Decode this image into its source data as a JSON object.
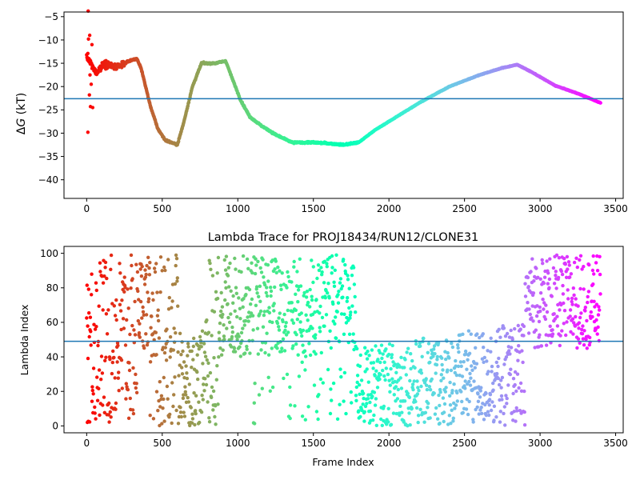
{
  "chart_data": [
    {
      "type": "scatter",
      "title": "",
      "xlabel": "",
      "ylabel": "ΔG (kT)",
      "ylabel_parts": {
        "delta": "Δ",
        "symbol": "G",
        "unit": " (kT)"
      },
      "xlim": [
        -150,
        3550
      ],
      "ylim": [
        -44,
        -4
      ],
      "xticks": [
        0,
        500,
        1000,
        1500,
        2000,
        2500,
        3000,
        3500
      ],
      "yticks": [
        -40,
        -35,
        -30,
        -25,
        -20,
        -15,
        -10,
        -5
      ],
      "tick_labels_x": [
        "0",
        "500",
        "1000",
        "1500",
        "2000",
        "2500",
        "3000",
        "3500"
      ],
      "tick_labels_y": [
        "−40",
        "−35",
        "−30",
        "−25",
        "−20",
        "−15",
        "−10",
        "−5"
      ],
      "hline": -22.6,
      "hline_color": "#1f77b4",
      "colormap": "rainbow (red → purple with increasing frame index)",
      "n_frames": 3400,
      "x_max": 3400,
      "trace_knots": [
        [
          0,
          -13.5
        ],
        [
          60,
          -17
        ],
        [
          120,
          -15
        ],
        [
          200,
          -16
        ],
        [
          280,
          -14.5
        ],
        [
          330,
          -14
        ],
        [
          360,
          -16
        ],
        [
          420,
          -24
        ],
        [
          470,
          -29
        ],
        [
          520,
          -31.5
        ],
        [
          600,
          -32.5
        ],
        [
          640,
          -28
        ],
        [
          700,
          -20
        ],
        [
          760,
          -15
        ],
        [
          850,
          -15
        ],
        [
          920,
          -14.5
        ],
        [
          960,
          -18
        ],
        [
          1020,
          -23
        ],
        [
          1080,
          -26.5
        ],
        [
          1160,
          -28.5
        ],
        [
          1260,
          -30.5
        ],
        [
          1360,
          -32
        ],
        [
          1500,
          -32
        ],
        [
          1600,
          -32.2
        ],
        [
          1700,
          -32.5
        ],
        [
          1800,
          -32
        ],
        [
          1900,
          -29.5
        ],
        [
          2000,
          -27.5
        ],
        [
          2200,
          -23.5
        ],
        [
          2400,
          -20
        ],
        [
          2600,
          -17.5
        ],
        [
          2750,
          -16
        ],
        [
          2850,
          -15.3
        ],
        [
          2950,
          -17
        ],
        [
          3100,
          -19.8
        ],
        [
          3250,
          -21.5
        ],
        [
          3400,
          -23.5
        ]
      ],
      "early_outliers": [
        [
          10,
          -3.8
        ],
        [
          12,
          -9.8
        ],
        [
          20,
          -9
        ],
        [
          5,
          -13.8
        ],
        [
          15,
          -14
        ],
        [
          22,
          -17.5
        ],
        [
          18,
          -21.8
        ],
        [
          8,
          -29.8
        ],
        [
          25,
          -24.3
        ],
        [
          40,
          -24.5
        ],
        [
          30,
          -19.5
        ],
        [
          35,
          -11
        ]
      ],
      "grid": false
    },
    {
      "type": "scatter",
      "title": "Lambda Trace for PROJ18434/RUN12/CLONE31",
      "xlabel": "Frame Index",
      "ylabel": "Lambda Index",
      "xlim": [
        -150,
        3550
      ],
      "ylim": [
        -4,
        104
      ],
      "xticks": [
        0,
        500,
        1000,
        1500,
        2000,
        2500,
        3000,
        3500
      ],
      "yticks": [
        0,
        20,
        40,
        60,
        80,
        100
      ],
      "tick_labels_x": [
        "0",
        "500",
        "1000",
        "1500",
        "2000",
        "2500",
        "3000",
        "3500"
      ],
      "tick_labels_y": [
        "0",
        "20",
        "40",
        "60",
        "80",
        "100"
      ],
      "hline": 49,
      "hline_color": "#1f77b4",
      "colormap": "rainbow (red → purple with increasing frame index)",
      "regions": [
        {
          "x_range": [
            0,
            340
          ],
          "y_range": [
            0,
            99
          ],
          "density": "uniform"
        },
        {
          "x_range": [
            340,
            620
          ],
          "y_range": [
            45,
            99
          ],
          "density": "upper band"
        },
        {
          "x_range": [
            420,
            880
          ],
          "y_range": [
            0,
            55
          ],
          "density": "lower band"
        },
        {
          "x_range": [
            780,
            1100
          ],
          "y_range": [
            40,
            99
          ],
          "density": "upper band"
        },
        {
          "x_range": [
            1100,
            1780
          ],
          "y_range": [
            0,
            99
          ],
          "density": "uniform, denser upper"
        },
        {
          "x_range": [
            1780,
            2900
          ],
          "y_range": [
            0,
            45
          ],
          "density": "lower band rising to 60 by 2800"
        },
        {
          "x_range": [
            2880,
            3400
          ],
          "y_range": [
            45,
            99
          ],
          "density": "upper band"
        }
      ],
      "grid": false
    }
  ]
}
